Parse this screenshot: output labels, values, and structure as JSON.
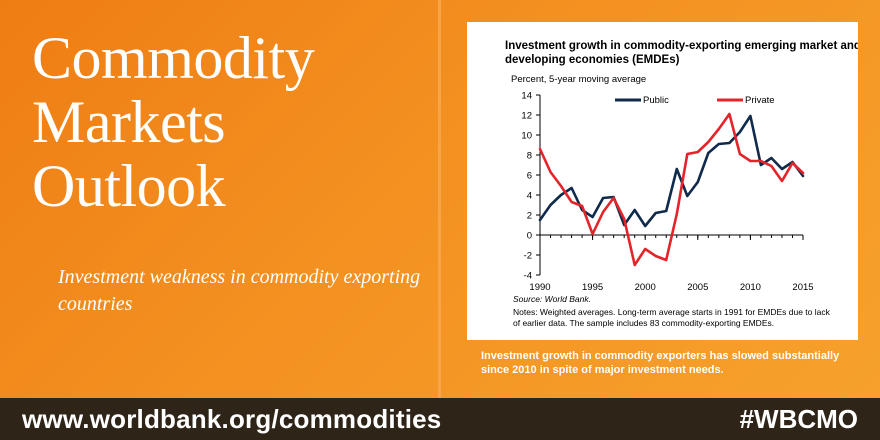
{
  "banner": {
    "title_lines": [
      "Commodity",
      "Markets",
      "Outlook"
    ],
    "subtitle": "Investment weakness in commodity exporting countries",
    "caption": "Investment growth in commodity exporters has slowed substantially since 2010 in spite of major investment needs.",
    "url": "www.worldbank.org/commodities",
    "hashtag": "#WBCMO"
  },
  "colors": {
    "public": "#0f2a4a",
    "private": "#e3242b",
    "background_orange": "#f39121",
    "footer": "#2f2418"
  },
  "chart_data": {
    "type": "line",
    "title": "Investment growth in commodity-exporting emerging market and developing economies (EMDEs)",
    "ylabel": "Percent, 5-year moving average",
    "xlabel": "",
    "xlim": [
      1990,
      2015
    ],
    "ylim": [
      -4,
      14
    ],
    "x_ticks": [
      1990,
      1995,
      2000,
      2005,
      2010,
      2015
    ],
    "y_ticks": [
      -4,
      -2,
      0,
      2,
      4,
      6,
      8,
      10,
      12,
      14
    ],
    "legend_position": "top",
    "x": [
      1990,
      1991,
      1992,
      1993,
      1994,
      1995,
      1996,
      1997,
      1998,
      1999,
      2000,
      2001,
      2002,
      2003,
      2004,
      2005,
      2006,
      2007,
      2008,
      2009,
      2010,
      2011,
      2012,
      2013,
      2014,
      2015
    ],
    "series": [
      {
        "name": "Public",
        "color": "#0f2a4a",
        "values": [
          1.5,
          3.0,
          4.0,
          4.7,
          2.5,
          1.8,
          3.7,
          3.8,
          1.0,
          2.5,
          0.9,
          2.2,
          2.4,
          6.6,
          3.9,
          5.3,
          8.2,
          9.1,
          9.2,
          10.3,
          11.9,
          7.0,
          7.7,
          6.6,
          7.3,
          5.9
        ]
      },
      {
        "name": "Private",
        "color": "#e3242b",
        "values": [
          8.6,
          6.3,
          4.9,
          3.3,
          2.9,
          0.1,
          2.3,
          3.7,
          1.6,
          -3.0,
          -1.4,
          -2.1,
          -2.5,
          2.1,
          8.1,
          8.3,
          9.3,
          10.6,
          12.1,
          8.1,
          7.4,
          7.4,
          6.9,
          5.4,
          7.2,
          6.2
        ]
      }
    ],
    "source": "Source: World Bank.",
    "notes": "Notes: Weighted averages. Long-term average starts in 1991 for EMDEs due to lack of earlier data. The sample includes 83 commodity-exporting EMDEs."
  }
}
